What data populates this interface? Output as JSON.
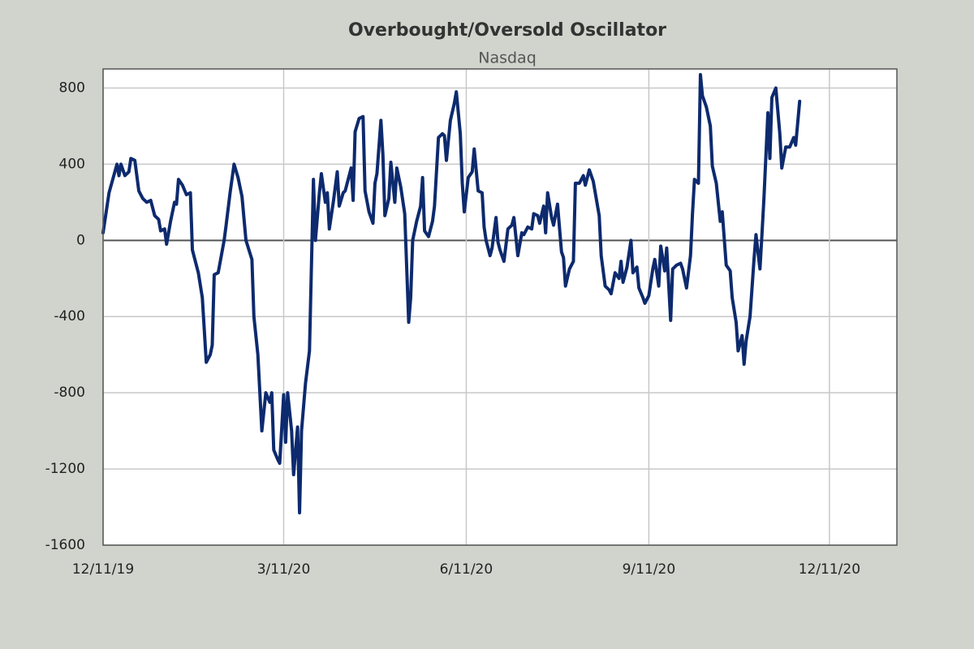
{
  "chart_data": {
    "type": "line",
    "title": "Overbought/Oversold  Oscillator",
    "subtitle": "Nasdaq",
    "color": "#0d2a6e",
    "grid": true,
    "x": [
      "12/11/19",
      "12/14/19",
      "12/18/19",
      "12/19/19",
      "12/20/19",
      "12/22/19",
      "12/24/19",
      "12/25/19",
      "12/27/19",
      "12/29/19",
      "12/31/19",
      "1/2/20",
      "1/4/20",
      "1/6/20",
      "1/8/20",
      "1/9/20",
      "1/11/20",
      "1/12/20",
      "1/14/20",
      "1/16/20",
      "1/17/20",
      "1/18/20",
      "1/20/20",
      "1/22/20",
      "1/24/20",
      "1/25/20",
      "1/27/20",
      "1/28/20",
      "1/30/20",
      "2/1/20",
      "2/3/20",
      "2/4/20",
      "2/5/20",
      "2/7/20",
      "2/10/20",
      "2/11/20",
      "2/13/20",
      "2/15/20",
      "2/17/20",
      "2/19/20",
      "2/21/20",
      "2/24/20",
      "2/25/20",
      "2/27/20",
      "2/29/20",
      "3/1/20",
      "3/2/20",
      "3/4/20",
      "3/5/20",
      "3/6/20",
      "3/8/20",
      "3/9/20",
      "3/11/20",
      "3/12/20",
      "3/13/20",
      "3/15/20",
      "3/16/20",
      "3/18/20",
      "3/19/20",
      "3/20/20",
      "3/22/20",
      "3/24/20",
      "3/26/20",
      "3/27/20",
      "3/29/20",
      "3/30/20",
      "4/1/20",
      "4/2/20",
      "4/3/20",
      "4/5/20",
      "4/7/20",
      "4/8/20",
      "4/10/20",
      "4/11/20",
      "4/14/20",
      "4/15/20",
      "4/16/20",
      "4/18/20",
      "4/20/20",
      "4/21/20",
      "4/23/20",
      "4/25/20",
      "4/26/20",
      "4/27/20",
      "4/29/20",
      "4/30/20",
      "5/1/20",
      "5/3/20",
      "5/4/20",
      "5/6/20",
      "5/7/20",
      "5/9/20",
      "5/11/20",
      "5/13/20",
      "5/14/20",
      "5/15/20",
      "5/17/20",
      "5/19/20",
      "5/20/20",
      "5/21/20",
      "5/23/20",
      "5/25/20",
      "5/26/20",
      "5/28/20",
      "5/30/20",
      "5/31/20",
      "6/1/20",
      "6/3/20",
      "6/5/20",
      "6/6/20",
      "6/8/20",
      "6/9/20",
      "6/10/20",
      "6/12/20",
      "6/14/20",
      "6/15/20",
      "6/17/20",
      "6/19/20",
      "6/20/20",
      "6/21/20",
      "6/23/20",
      "6/24/20",
      "6/26/20",
      "6/27/20",
      "6/28/20",
      "6/30/20",
      "7/2/20",
      "7/4/20",
      "7/5/20",
      "7/7/20",
      "7/9/20",
      "7/10/20",
      "7/12/20",
      "7/14/20",
      "7/15/20",
      "7/17/20",
      "7/18/20",
      "7/20/20",
      "7/21/20",
      "7/22/20",
      "7/24/20",
      "7/25/20",
      "7/27/20",
      "7/29/20",
      "7/30/20",
      "7/31/20",
      "8/2/20",
      "8/4/20",
      "8/5/20",
      "8/7/20",
      "8/9/20",
      "8/10/20",
      "8/12/20",
      "8/14/20",
      "8/15/20",
      "8/17/20",
      "8/18/20",
      "8/20/20",
      "8/22/20",
      "8/23/20",
      "8/25/20",
      "8/27/20",
      "8/28/20",
      "8/29/20",
      "8/31/20",
      "9/2/20",
      "9/3/20",
      "9/5/20",
      "9/6/20",
      "9/8/20",
      "9/9/20",
      "9/11/20",
      "9/13/20",
      "9/14/20",
      "9/16/20",
      "9/17/20",
      "9/19/20",
      "9/20/20",
      "9/22/20",
      "9/23/20",
      "9/25/20",
      "9/27/20",
      "9/28/20",
      "9/30/20",
      "10/2/20",
      "10/3/20",
      "10/4/20",
      "10/6/20",
      "10/7/20",
      "10/8/20",
      "10/10/20",
      "10/12/20",
      "10/13/20",
      "10/15/20",
      "10/17/20",
      "10/18/20",
      "10/20/20",
      "10/22/20",
      "10/23/20",
      "10/25/20",
      "10/26/20",
      "10/28/20",
      "10/29/20",
      "10/30/20",
      "11/1/20",
      "11/3/20",
      "11/4/20",
      "11/6/20",
      "11/7/20",
      "11/8/20",
      "11/10/20",
      "11/11/20",
      "11/12/20",
      "11/14/20",
      "11/16/20",
      "11/17/20",
      "11/19/20",
      "11/21/20",
      "11/23/20",
      "11/24/20",
      "11/26/20"
    ],
    "values": [
      40,
      250,
      400,
      340,
      400,
      340,
      360,
      430,
      420,
      260,
      220,
      200,
      210,
      130,
      110,
      50,
      60,
      -20,
      100,
      200,
      190,
      320,
      290,
      240,
      250,
      -50,
      -130,
      -170,
      -300,
      -640,
      -600,
      -550,
      -180,
      -170,
      0,
      80,
      250,
      400,
      330,
      230,
      0,
      -100,
      -400,
      -600,
      -1000,
      -900,
      -800,
      -850,
      -800,
      -1100,
      -1150,
      -1170,
      -810,
      -1060,
      -800,
      -1000,
      -1230,
      -980,
      -1430,
      -1000,
      -750,
      -580,
      320,
      0,
      250,
      350,
      200,
      250,
      60,
      200,
      360,
      180,
      250,
      260,
      380,
      210,
      570,
      640,
      650,
      260,
      150,
      90,
      300,
      350,
      630,
      450,
      130,
      220,
      410,
      200,
      380,
      280,
      140,
      -430,
      -300,
      0,
      100,
      180,
      330,
      50,
      20,
      100,
      180,
      540,
      560,
      550,
      420,
      630,
      720,
      780,
      560,
      300,
      150,
      330,
      360,
      480,
      260,
      250,
      70,
      0,
      -80,
      -40,
      120,
      -10,
      -50,
      -110,
      60,
      80,
      120,
      -80,
      40,
      30,
      70,
      60,
      140,
      130,
      90,
      180,
      40,
      250,
      120,
      80,
      190,
      -60,
      -90,
      -240,
      -150,
      -110,
      300,
      300,
      340,
      290,
      370,
      310,
      250,
      130,
      -80,
      -240,
      -260,
      -280,
      -170,
      -200,
      -110,
      -220,
      -140,
      0,
      -170,
      -140,
      -250,
      -300,
      -330,
      -290,
      -150,
      -100,
      -240,
      -30,
      -160,
      -40,
      -420,
      -150,
      -130,
      -120,
      -150,
      -250,
      -80,
      140,
      320,
      300,
      870,
      760,
      700,
      600,
      390,
      300,
      100,
      150,
      -130,
      -160,
      -300,
      -430,
      -580,
      -500,
      -650,
      -530,
      -400,
      -100,
      30,
      -150,
      30,
      220,
      670,
      430,
      750,
      800,
      560,
      380,
      490,
      490,
      540,
      500,
      730
    ],
    "xlim": [
      "12/11/19",
      "1/14/21"
    ],
    "xticks": [
      "12/11/19",
      "3/11/20",
      "6/11/20",
      "9/11/20",
      "12/11/20"
    ],
    "ylim": [
      -1600,
      900
    ],
    "yticks": [
      800,
      400,
      0,
      -400,
      -800,
      -1200,
      -1600
    ]
  }
}
